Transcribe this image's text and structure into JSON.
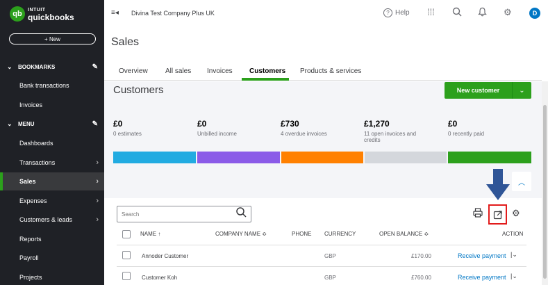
{
  "brand": {
    "logo_mark": "qb",
    "line1": "INTUIT",
    "line2": "quickbooks"
  },
  "sidebar": {
    "new_label": "+ New",
    "bookmarks_label": "BOOKMARKS",
    "bookmarks": [
      "Bank transactions",
      "Invoices"
    ],
    "menu_label": "MENU",
    "menu": [
      "Dashboards",
      "Transactions",
      "Sales",
      "Expenses",
      "Customers & leads",
      "Reports",
      "Payroll",
      "Projects"
    ]
  },
  "topbar": {
    "company": "Divina Test Company Plus UK",
    "help": "Help",
    "avatar": "D"
  },
  "page": {
    "title": "Sales"
  },
  "tabs": [
    "Overview",
    "All sales",
    "Invoices",
    "Customers",
    "Products & services"
  ],
  "customers": {
    "title": "Customers",
    "new_button": "New customer",
    "stats": [
      {
        "amount": "£0",
        "label": "0 estimates",
        "color": "#21abe1"
      },
      {
        "amount": "£0",
        "label": "Unbilled income",
        "color": "#8b5be8"
      },
      {
        "amount": "£730",
        "label": "4 overdue invoices",
        "color": "#ff8000"
      },
      {
        "amount": "£1,270",
        "label": "11 open invoices and credits",
        "color": "#d4d7dc"
      },
      {
        "amount": "£0",
        "label": "0 recently paid",
        "color": "#2ca01c"
      }
    ]
  },
  "table": {
    "search_placeholder": "Search",
    "headers": {
      "name": "NAME ↑",
      "company": "COMPANY NAME ≎",
      "phone": "PHONE",
      "currency": "CURRENCY",
      "balance": "OPEN BALANCE ≎",
      "action": "ACTION"
    },
    "rows": [
      {
        "name": "Annoder Customer",
        "currency": "GBP",
        "balance": "£170.00",
        "action": "Receive payment"
      },
      {
        "name": "Customer Koh",
        "currency": "GBP",
        "balance": "£760.00",
        "action": "Receive payment"
      }
    ]
  },
  "icons": {
    "menu_toggle": "menu-collapse-icon",
    "help": "help-icon",
    "apps": "apps-grid-icon",
    "search": "search-icon",
    "bell": "notification-bell-icon",
    "settings": "gear-icon",
    "print": "printer-icon",
    "export": "export-icon",
    "table_settings": "gear-icon",
    "annotation_arrow": "blue-down-arrow"
  }
}
